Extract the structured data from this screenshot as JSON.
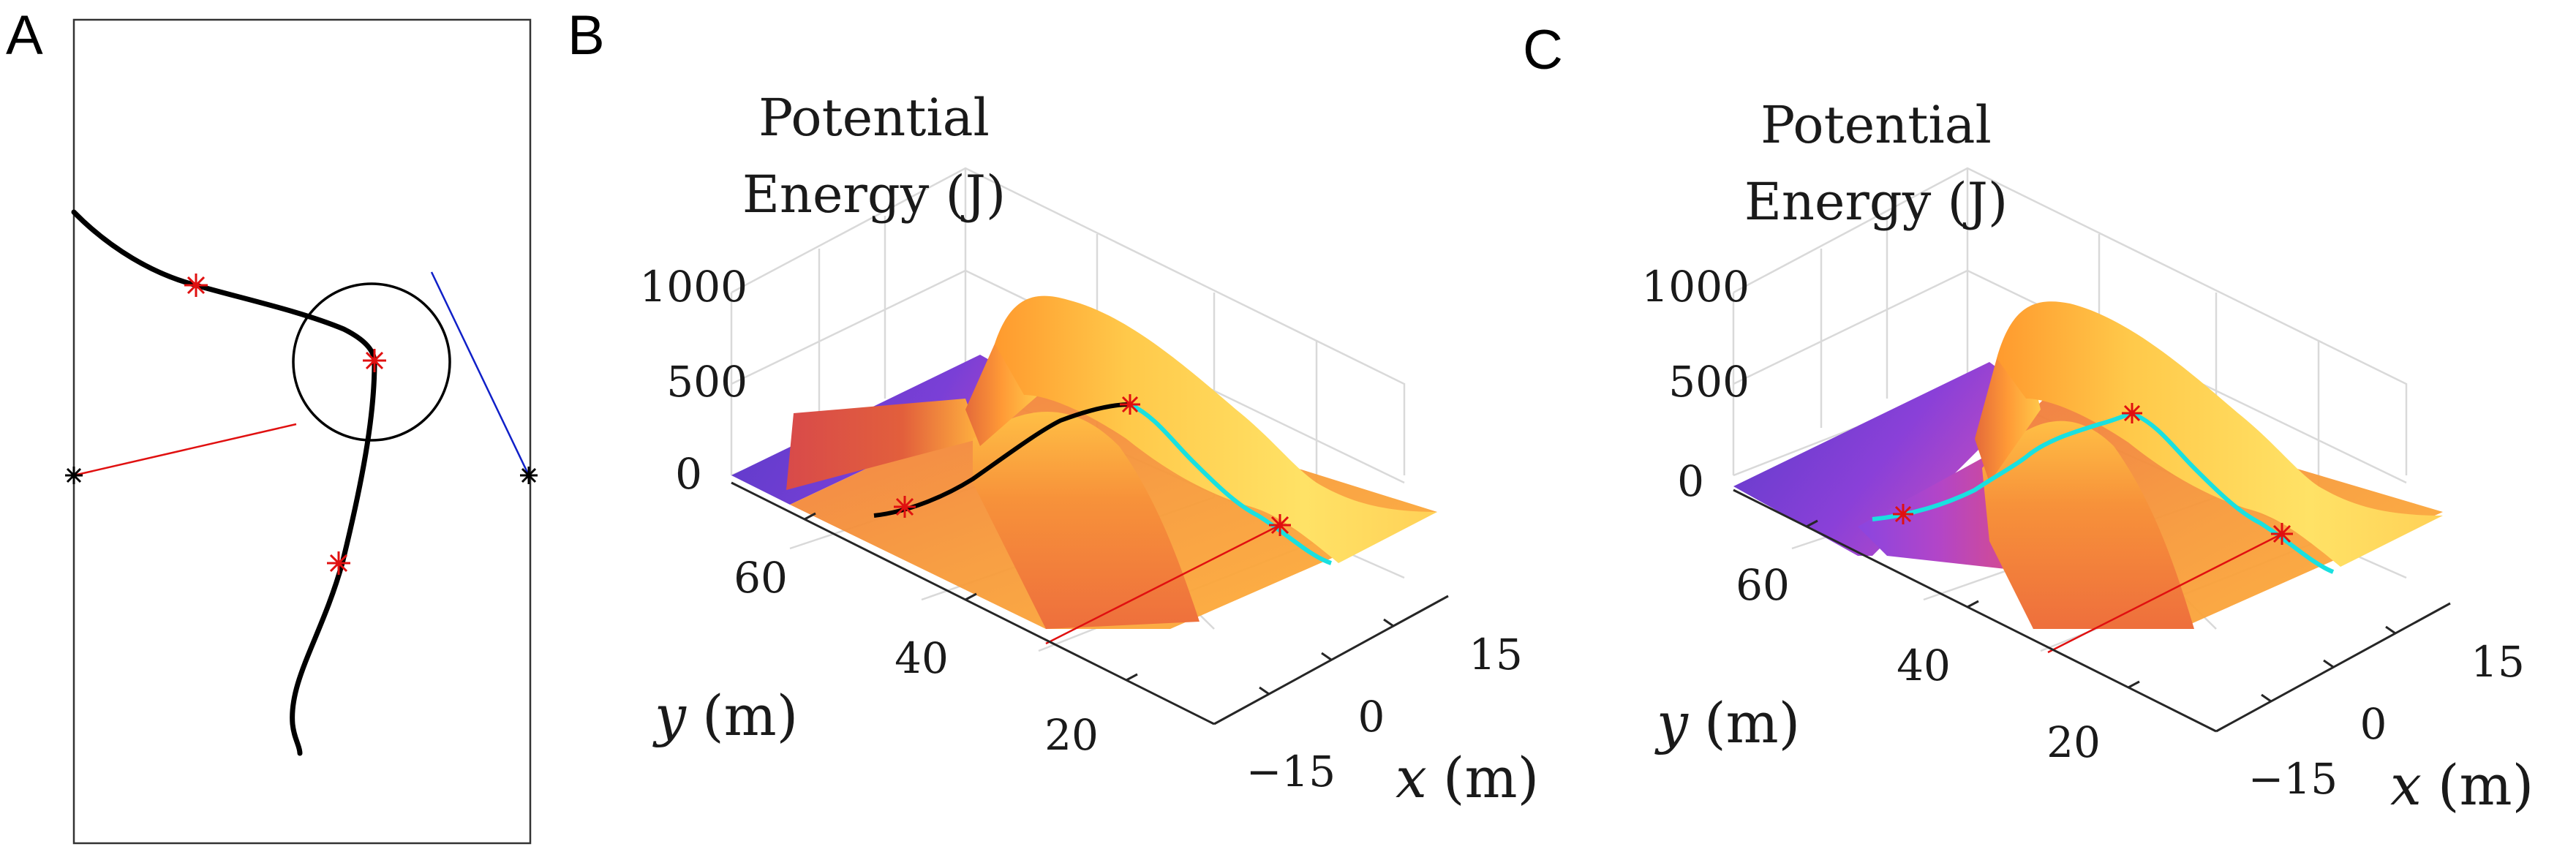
{
  "chart_data": [
    {
      "panel": "A",
      "type": "diagram",
      "elements": [
        "rectangle boundary",
        "black trajectory",
        "circle",
        "red line",
        "blue line",
        "red star markers",
        "black star markers"
      ]
    },
    {
      "panel": "B",
      "type": "surface",
      "zlabel_lines": [
        "Potential",
        "Energy (J)"
      ],
      "z_ticks": [
        "1000",
        "500",
        "0"
      ],
      "y_ticks": [
        "60",
        "40",
        "20"
      ],
      "x_ticks": [
        "15",
        "0",
        "−15"
      ],
      "xlabel": {
        "var": "x",
        "unit": "(m)"
      },
      "ylabel": {
        "var": "y",
        "unit": "(m)"
      },
      "colormap": [
        "#5e38c8",
        "#b233a8",
        "#e8603a",
        "#ffaa33",
        "#ffe860"
      ],
      "path_colors": [
        "#000000",
        "#00e5e5"
      ]
    },
    {
      "panel": "C",
      "type": "surface",
      "zlabel_lines": [
        "Potential",
        "Energy (J)"
      ],
      "z_ticks": [
        "1000",
        "500",
        "0"
      ],
      "y_ticks": [
        "60",
        "40",
        "20"
      ],
      "x_ticks": [
        "15",
        "0",
        "−15"
      ],
      "xlabel": {
        "var": "x",
        "unit": "(m)"
      },
      "ylabel": {
        "var": "y",
        "unit": "(m)"
      },
      "colormap": [
        "#5e38c8",
        "#b233a8",
        "#e8603a",
        "#ffaa33",
        "#ffe860"
      ],
      "path_colors": [
        "#00e5e5"
      ]
    }
  ],
  "panels": {
    "a": "A",
    "b": "B",
    "c": "C"
  }
}
